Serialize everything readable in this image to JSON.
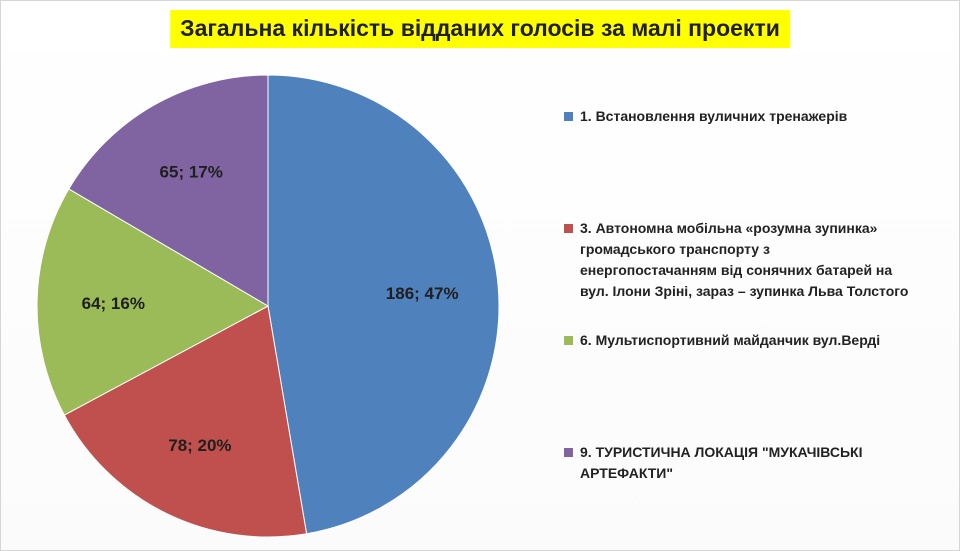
{
  "chart_data": {
    "type": "pie",
    "title": "Загальна кількість відданих голосів за малі проекти",
    "legend_position": "right",
    "slices": [
      {
        "name": "1. Встановлення вуличних тренажерів",
        "value": 186,
        "percent": 47,
        "label": "186; 47%",
        "color": "#4f81bd"
      },
      {
        "name": "3. Автономна мобільна «розумна зупинка»\nгромадського транспорту з\nенергопостачанням від сонячних батарей на\nвул. Ілони Зріні, зараз – зупинка Льва Толстого",
        "value": 78,
        "percent": 20,
        "label": "78; 20%",
        "color": "#c0504d"
      },
      {
        "name": "6. Мультиспортивний майданчик вул.Верді",
        "value": 64,
        "percent": 16,
        "label": "64; 16%",
        "color": "#9bbb59"
      },
      {
        "name": "9. ТУРИСТИЧНА ЛОКАЦІЯ \"МУКАЧІВСЬКІ\nАРТЕФАКТИ\"",
        "value": 65,
        "percent": 17,
        "label": "65; 17%",
        "color": "#8064a2"
      }
    ]
  }
}
